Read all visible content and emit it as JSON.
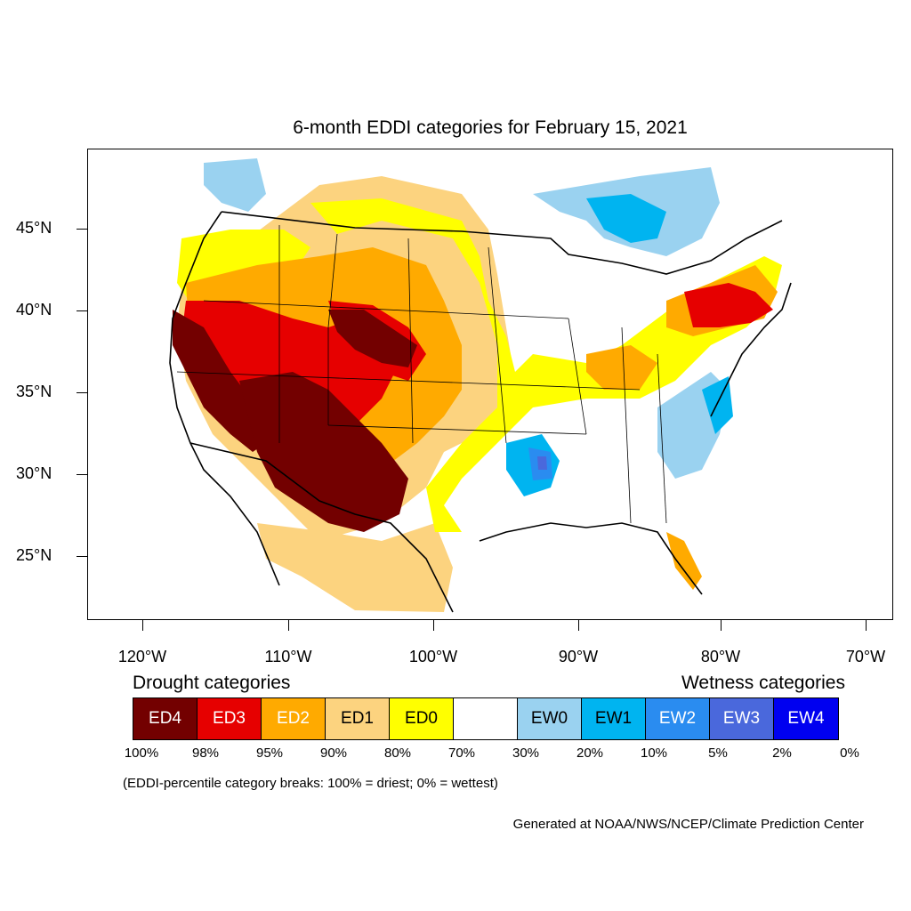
{
  "title": "6-month EDDI categories for February 15, 2021",
  "lat_labels": [
    "45°N",
    "40°N",
    "35°N",
    "30°N",
    "25°N"
  ],
  "lon_labels": [
    "120°W",
    "110°W",
    "100°W",
    "90°W",
    "80°W",
    "70°W"
  ],
  "legend": {
    "drought_heading": "Drought categories",
    "wetness_heading": "Wetness categories",
    "categories": [
      {
        "label": "ED4",
        "color": "#730000",
        "text_color": "#ffffff"
      },
      {
        "label": "ED3",
        "color": "#e60000",
        "text_color": "#ffffff"
      },
      {
        "label": "ED2",
        "color": "#ffaa00",
        "text_color": "#ffffff"
      },
      {
        "label": "ED1",
        "color": "#fcd37f",
        "text_color": "#000000"
      },
      {
        "label": "ED0",
        "color": "#ffff00",
        "text_color": "#000000"
      },
      {
        "label": "",
        "color": "#ffffff",
        "text_color": "#000000"
      },
      {
        "label": "EW0",
        "color": "#9ad2f0",
        "text_color": "#000000"
      },
      {
        "label": "EW1",
        "color": "#00b4f0",
        "text_color": "#000000"
      },
      {
        "label": "EW2",
        "color": "#2a8cf0",
        "text_color": "#ffffff"
      },
      {
        "label": "EW3",
        "color": "#4a68dc",
        "text_color": "#ffffff"
      },
      {
        "label": "EW4",
        "color": "#0000f0",
        "text_color": "#ffffff"
      }
    ],
    "percentile_breaks": [
      "100%",
      "98%",
      "95%",
      "90%",
      "80%",
      "70%",
      "30%",
      "20%",
      "10%",
      "5%",
      "2%",
      "0%"
    ]
  },
  "note": "(EDDI-percentile category breaks: 100% = driest; 0% = wettest)",
  "credit": "Generated at NOAA/NWS/NCEP/Climate Prediction Center"
}
